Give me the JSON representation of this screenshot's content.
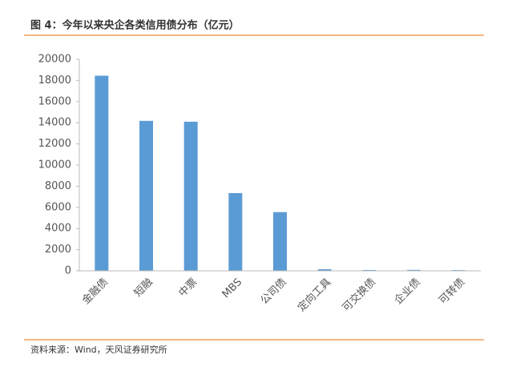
{
  "chart_data": {
    "type": "bar",
    "title": "图 4：今年以来央企各类信用债分布（亿元）",
    "source": "资料来源：Wind，天风证券研究所",
    "categories": [
      "金融债",
      "短融",
      "中票",
      "MBS",
      "公司债",
      "定向工具",
      "可交换债",
      "企业债",
      "可转债"
    ],
    "values": [
      18450,
      14180,
      14100,
      7350,
      5550,
      150,
      80,
      90,
      70
    ],
    "color": "#5b9bd5",
    "ylim": [
      0,
      20000
    ],
    "yticks": [
      0,
      2000,
      4000,
      6000,
      8000,
      10000,
      12000,
      14000,
      16000,
      18000,
      20000
    ],
    "grid": false
  }
}
